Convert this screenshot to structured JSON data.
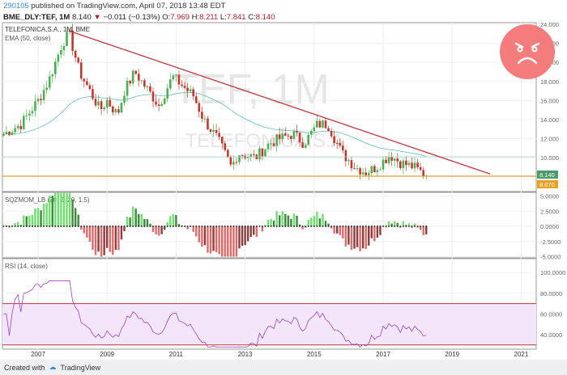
{
  "header": {
    "id": "290105",
    "published": " published on TradingView.com, April 07, 2018 13:48 EDT",
    "symbol": "BME_DLY:TEF, 1M",
    "last": "8.140",
    "change": "−0.011 (−0.13%)",
    "o_label": "O:",
    "o": "7.969",
    "h_label": "H:",
    "h": "8.211",
    "l_label": "L:",
    "l": "7.841",
    "c_label": "C:",
    "c": "8.140"
  },
  "footer": {
    "created_with": "Created with",
    "brand": "TradingView"
  },
  "colors": {
    "up": "#4caf50",
    "down": "#c0392b",
    "ema": "#5bbfbf",
    "trend": "#c0353a",
    "support": "#e8a020",
    "emoji": "#f47c7c"
  },
  "chart_data": [
    {
      "type": "candlestick",
      "title": "TELEFONICA,S.A., 1M, BME",
      "indicator": "EMA (50, close)",
      "watermark": "TEF, 1M",
      "watermark_sub": "TELEFONICA,S.A.",
      "close_keypoints": [
        [
          2006.0,
          12.5
        ],
        [
          2006.5,
          13.5
        ],
        [
          2007.0,
          16
        ],
        [
          2007.3,
          18
        ],
        [
          2007.7,
          22
        ],
        [
          2007.9,
          23
        ],
        [
          2008.2,
          19
        ],
        [
          2008.5,
          17
        ],
        [
          2008.8,
          15
        ],
        [
          2009.0,
          16
        ],
        [
          2009.3,
          14.5
        ],
        [
          2009.5,
          17
        ],
        [
          2009.8,
          19
        ],
        [
          2010.2,
          17
        ],
        [
          2010.5,
          15.5
        ],
        [
          2010.9,
          18.5
        ],
        [
          2011.2,
          17.5
        ],
        [
          2011.5,
          16.5
        ],
        [
          2011.8,
          14
        ],
        [
          2012.2,
          12
        ],
        [
          2012.6,
          9
        ],
        [
          2012.8,
          10.5
        ],
        [
          2013.3,
          10
        ],
        [
          2013.7,
          11.5
        ],
        [
          2014.0,
          12
        ],
        [
          2014.4,
          12.5
        ],
        [
          2014.7,
          11.5
        ],
        [
          2015.1,
          13.5
        ],
        [
          2015.4,
          13.5
        ],
        [
          2015.8,
          10.5
        ],
        [
          2016.2,
          9
        ],
        [
          2016.5,
          8.5
        ],
        [
          2016.8,
          9
        ],
        [
          2017.2,
          10.3
        ],
        [
          2017.5,
          9.5
        ],
        [
          2017.9,
          9
        ],
        [
          2018.25,
          8.14
        ]
      ],
      "trendline": [
        [
          2007.9,
          23.3
        ],
        [
          2020.1,
          8.3
        ]
      ],
      "hlines": [
        {
          "value": 8.07,
          "label": "8.070"
        },
        {
          "value": 10.1
        }
      ],
      "last_label": "8.140",
      "y_ticks": [
        "24.000",
        "22.000",
        "20.000",
        "18.000",
        "16.000",
        "14.000",
        "12.000",
        "10.000"
      ],
      "ylim": [
        7,
        24
      ]
    },
    {
      "type": "bar",
      "title": "SQZMOM_LB (20, 2, 20, 1.5)",
      "y_ticks": [
        "5.0000",
        "2.5000",
        "0.0000",
        "-2.5000",
        "-5.0000"
      ],
      "ylim": [
        -5.2,
        5.5
      ]
    },
    {
      "type": "line",
      "title": "RSI (14, close)",
      "y_ticks": [
        "100.0000",
        "80.0000",
        "60.0000",
        "40.0000"
      ],
      "bands": [
        30,
        70
      ],
      "ylim": [
        25,
        110
      ]
    }
  ],
  "x_ticks": [
    "2007",
    "2009",
    "2011",
    "2013",
    "2015",
    "2017",
    "2019",
    "2021"
  ]
}
